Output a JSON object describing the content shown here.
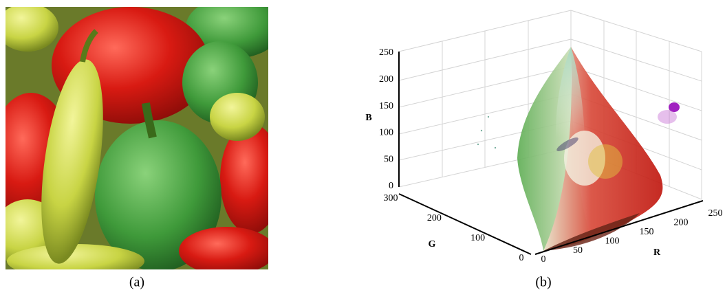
{
  "panels": [
    {
      "caption": "(a)"
    },
    {
      "caption": "(b)",
      "axes": {
        "b": {
          "label": "B",
          "ticks": [
            0,
            50,
            100,
            150,
            200,
            250
          ]
        },
        "g": {
          "label": "G",
          "ticks": [
            0,
            100,
            200,
            300
          ]
        },
        "r": {
          "label": "R",
          "ticks": [
            0,
            50,
            100,
            150,
            200,
            250
          ]
        }
      }
    }
  ]
}
